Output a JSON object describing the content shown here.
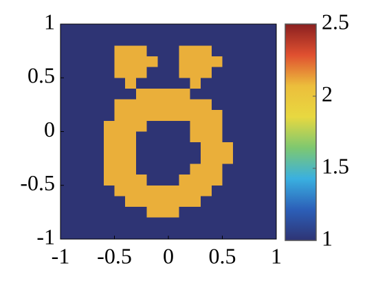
{
  "chart_data": {
    "type": "heatmap",
    "xlim": [
      -1,
      1
    ],
    "ylim": [
      -1,
      1
    ],
    "xticks": [
      -1,
      -0.5,
      0,
      0.5,
      1
    ],
    "yticks": [
      -1,
      -0.5,
      0,
      0.5,
      1
    ],
    "clim": [
      1,
      2.5
    ],
    "cticks": [
      1,
      1.5,
      2,
      2.5
    ],
    "colormap": [
      "#2e3474",
      "#2c5fb8",
      "#3ab0e0",
      "#7ec870",
      "#e8d840",
      "#ecbe3c",
      "#e05030",
      "#8a2020"
    ],
    "values": [
      [
        1,
        1,
        1,
        1,
        1,
        1,
        1,
        1,
        1,
        1,
        1,
        1,
        1,
        1,
        1,
        1,
        1,
        1,
        1,
        1
      ],
      [
        1,
        1,
        1,
        1,
        1,
        1,
        1,
        1,
        1,
        1,
        1,
        1,
        1,
        1,
        1,
        1,
        1,
        1,
        1,
        1
      ],
      [
        1,
        1,
        1,
        1,
        1,
        2.1,
        2.1,
        2.1,
        1,
        1,
        1,
        2.1,
        2.1,
        2.1,
        1,
        1,
        1,
        1,
        1,
        1
      ],
      [
        1,
        1,
        1,
        1,
        1,
        2.1,
        2.1,
        2.1,
        2.1,
        1,
        1,
        2.1,
        2.1,
        2.1,
        2.1,
        1,
        1,
        1,
        1,
        1
      ],
      [
        1,
        1,
        1,
        1,
        1,
        2.1,
        2.1,
        2.1,
        1,
        1,
        1,
        2.1,
        2.1,
        2.1,
        1,
        1,
        1,
        1,
        1,
        1
      ],
      [
        1,
        1,
        1,
        1,
        1,
        1,
        2.1,
        1,
        1,
        1,
        1,
        1,
        2.1,
        1,
        1,
        1,
        1,
        1,
        1,
        1
      ],
      [
        1,
        1,
        1,
        1,
        1,
        1,
        1,
        2.1,
        2.1,
        2.1,
        2.1,
        2.1,
        1,
        1,
        1,
        1,
        1,
        1,
        1,
        1
      ],
      [
        1,
        1,
        1,
        1,
        1,
        2.1,
        2.1,
        2.1,
        2.1,
        2.1,
        2.1,
        2.1,
        2.1,
        2.1,
        1,
        1,
        1,
        1,
        1,
        1
      ],
      [
        1,
        1,
        1,
        1,
        1,
        2.1,
        2.1,
        2.1,
        2.1,
        2.1,
        2.1,
        2.1,
        2.1,
        2.1,
        2.1,
        1,
        1,
        1,
        1,
        1
      ],
      [
        1,
        1,
        1,
        1,
        2.1,
        2.1,
        2.1,
        2.1,
        1,
        1,
        1,
        1,
        2.1,
        2.1,
        2.1,
        1,
        1,
        1,
        1,
        1
      ],
      [
        1,
        1,
        1,
        1,
        2.1,
        2.1,
        2.1,
        1,
        1,
        1,
        1,
        1,
        2.1,
        2.1,
        2.1,
        1,
        1,
        1,
        1,
        1
      ],
      [
        1,
        1,
        1,
        1,
        2.1,
        2.1,
        2.1,
        1,
        1,
        1,
        1,
        1,
        1,
        2.1,
        2.1,
        2.1,
        1,
        1,
        1,
        1
      ],
      [
        1,
        1,
        1,
        1,
        2.1,
        2.1,
        2.1,
        1,
        1,
        1,
        1,
        1,
        1,
        2.1,
        2.1,
        2.1,
        1,
        1,
        1,
        1
      ],
      [
        1,
        1,
        1,
        1,
        2.1,
        2.1,
        2.1,
        1,
        1,
        1,
        1,
        1,
        2.1,
        2.1,
        2.1,
        1,
        1,
        1,
        1,
        1
      ],
      [
        1,
        1,
        1,
        1,
        2.1,
        2.1,
        2.1,
        2.1,
        1,
        1,
        1,
        2.1,
        2.1,
        2.1,
        2.1,
        1,
        1,
        1,
        1,
        1
      ],
      [
        1,
        1,
        1,
        1,
        1,
        2.1,
        2.1,
        2.1,
        2.1,
        2.1,
        2.1,
        2.1,
        2.1,
        2.1,
        1,
        1,
        1,
        1,
        1,
        1
      ],
      [
        1,
        1,
        1,
        1,
        1,
        1,
        2.1,
        2.1,
        2.1,
        2.1,
        2.1,
        2.1,
        2.1,
        1,
        1,
        1,
        1,
        1,
        1,
        1
      ],
      [
        1,
        1,
        1,
        1,
        1,
        1,
        1,
        1,
        2.1,
        2.1,
        2.1,
        1,
        1,
        1,
        1,
        1,
        1,
        1,
        1,
        1
      ],
      [
        1,
        1,
        1,
        1,
        1,
        1,
        1,
        1,
        1,
        1,
        1,
        1,
        1,
        1,
        1,
        1,
        1,
        1,
        1,
        1
      ],
      [
        1,
        1,
        1,
        1,
        1,
        1,
        1,
        1,
        1,
        1,
        1,
        1,
        1,
        1,
        1,
        1,
        1,
        1,
        1,
        1
      ]
    ]
  }
}
